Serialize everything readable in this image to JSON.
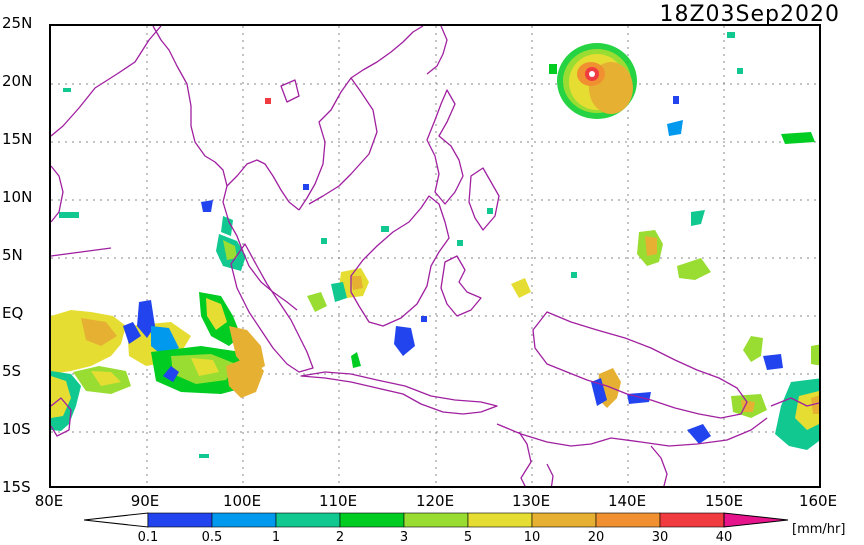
{
  "timestamp": "18Z03Sep2020",
  "units": "[mm/hr]",
  "lat_labels": [
    "25N",
    "20N",
    "15N",
    "10N",
    "5N",
    "EQ",
    "5S",
    "10S",
    "15S"
  ],
  "lon_labels": [
    "80E",
    "90E",
    "100E",
    "110E",
    "120E",
    "130E",
    "140E",
    "150E",
    "160E"
  ],
  "colorbar": {
    "ticks": [
      "0.1",
      "0.5",
      "1",
      "2",
      "3",
      "5",
      "10",
      "20",
      "30",
      "40"
    ],
    "colors": [
      "#2244ee",
      "#0099ee",
      "#10c890",
      "#00cc22",
      "#99dd33",
      "#e6dd33",
      "#e6b033",
      "#f09030",
      "#f03c40",
      "#e6158c"
    ]
  },
  "colors": {
    "coastline": "#a020a0",
    "grid": "#888888"
  }
}
